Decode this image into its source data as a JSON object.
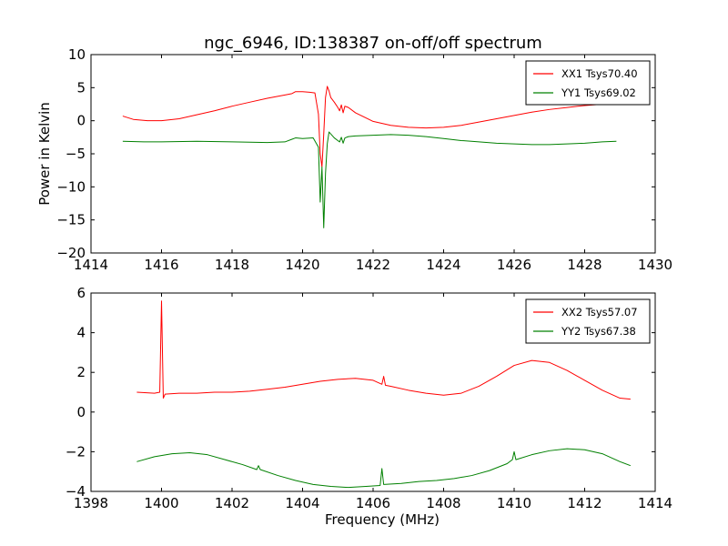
{
  "figure": {
    "title": "ngc_6946, ID:138387 on-off/off spectrum"
  },
  "colors": {
    "xx": "#ff0000",
    "yy": "#008000"
  },
  "chart_data": [
    {
      "type": "line",
      "title": "ngc_6946, ID:138387 on-off/off spectrum",
      "xlabel": "",
      "ylabel": "Power in Kelvin",
      "xlim": [
        1414,
        1430
      ],
      "ylim": [
        -20,
        10
      ],
      "xticks": [
        1414,
        1416,
        1418,
        1420,
        1422,
        1424,
        1426,
        1428,
        1430
      ],
      "yticks": [
        -20,
        -15,
        -10,
        -5,
        0,
        5,
        10
      ],
      "legend_position": "top-right",
      "series": [
        {
          "name": "XX1 Tsys70.40",
          "color": "#ff0000",
          "x": [
            1414.9,
            1415.2,
            1415.6,
            1416.0,
            1416.5,
            1417.0,
            1417.5,
            1418.0,
            1418.5,
            1419.0,
            1419.5,
            1419.7,
            1419.8,
            1420.0,
            1420.2,
            1420.35,
            1420.45,
            1420.5,
            1420.55,
            1420.6,
            1420.65,
            1420.7,
            1420.75,
            1420.8,
            1420.9,
            1421.0,
            1421.05,
            1421.1,
            1421.15,
            1421.2,
            1421.3,
            1421.5,
            1422.0,
            1422.5,
            1423.0,
            1423.5,
            1424.0,
            1424.5,
            1425.0,
            1425.5,
            1426.0,
            1426.5,
            1427.0,
            1427.5,
            1428.0,
            1428.5,
            1428.9
          ],
          "y": [
            0.7,
            0.2,
            0.0,
            0.0,
            0.3,
            0.9,
            1.5,
            2.2,
            2.8,
            3.4,
            3.9,
            4.1,
            4.4,
            4.4,
            4.3,
            4.2,
            1.0,
            -5.0,
            -7.0,
            -2.0,
            3.5,
            5.2,
            4.5,
            3.5,
            2.8,
            2.0,
            1.5,
            2.4,
            1.2,
            2.2,
            2.0,
            1.2,
            -0.1,
            -0.7,
            -1.0,
            -1.1,
            -1.0,
            -0.7,
            -0.2,
            0.3,
            0.8,
            1.3,
            1.7,
            2.0,
            2.3,
            2.5,
            2.6
          ]
        },
        {
          "name": "YY1 Tsys69.02",
          "color": "#008000",
          "x": [
            1414.9,
            1415.5,
            1416.0,
            1417.0,
            1418.0,
            1419.0,
            1419.5,
            1419.7,
            1419.8,
            1420.0,
            1420.3,
            1420.45,
            1420.5,
            1420.55,
            1420.6,
            1420.65,
            1420.7,
            1420.75,
            1420.8,
            1420.9,
            1421.0,
            1421.05,
            1421.1,
            1421.15,
            1421.2,
            1421.3,
            1421.5,
            1422.0,
            1422.5,
            1423.0,
            1423.5,
            1424.0,
            1424.5,
            1425.0,
            1425.5,
            1426.0,
            1426.5,
            1427.0,
            1427.5,
            1428.0,
            1428.5,
            1428.9
          ],
          "y": [
            -3.1,
            -3.2,
            -3.2,
            -3.1,
            -3.2,
            -3.3,
            -3.2,
            -2.8,
            -2.6,
            -2.7,
            -2.6,
            -4.0,
            -12.3,
            -7.0,
            -16.2,
            -8.0,
            -3.5,
            -1.7,
            -2.0,
            -2.6,
            -3.0,
            -3.2,
            -2.5,
            -3.4,
            -2.6,
            -2.4,
            -2.3,
            -2.2,
            -2.1,
            -2.2,
            -2.4,
            -2.7,
            -3.0,
            -3.2,
            -3.4,
            -3.5,
            -3.6,
            -3.6,
            -3.5,
            -3.4,
            -3.2,
            -3.1
          ]
        }
      ]
    },
    {
      "type": "line",
      "title": "",
      "xlabel": "Frequency (MHz)",
      "ylabel": "",
      "xlim": [
        1398,
        1414
      ],
      "ylim": [
        -4,
        6
      ],
      "xticks": [
        1398,
        1400,
        1402,
        1404,
        1406,
        1408,
        1410,
        1412,
        1414
      ],
      "yticks": [
        -4,
        -2,
        0,
        2,
        4,
        6
      ],
      "legend_position": "top-right",
      "series": [
        {
          "name": "XX2 Tsys57.07",
          "color": "#ff0000",
          "x": [
            1399.3,
            1399.8,
            1399.95,
            1400.0,
            1400.05,
            1400.1,
            1400.5,
            1401.0,
            1401.5,
            1402.0,
            1402.5,
            1403.0,
            1403.5,
            1404.0,
            1404.5,
            1405.0,
            1405.5,
            1406.0,
            1406.25,
            1406.3,
            1406.35,
            1406.5,
            1407.0,
            1407.5,
            1408.0,
            1408.5,
            1409.0,
            1409.5,
            1410.0,
            1410.5,
            1411.0,
            1411.5,
            1412.0,
            1412.5,
            1413.0,
            1413.3
          ],
          "y": [
            1.0,
            0.95,
            1.0,
            5.6,
            0.7,
            0.9,
            0.95,
            0.95,
            1.0,
            1.0,
            1.05,
            1.15,
            1.25,
            1.4,
            1.55,
            1.65,
            1.7,
            1.6,
            1.4,
            1.8,
            1.35,
            1.3,
            1.1,
            0.95,
            0.85,
            0.95,
            1.3,
            1.8,
            2.35,
            2.6,
            2.5,
            2.1,
            1.6,
            1.1,
            0.7,
            0.65
          ]
        },
        {
          "name": "YY2 Tsys67.38",
          "color": "#008000",
          "x": [
            1399.3,
            1399.8,
            1400.3,
            1400.8,
            1401.3,
            1401.8,
            1402.3,
            1402.7,
            1402.75,
            1402.8,
            1403.3,
            1403.8,
            1404.3,
            1404.8,
            1405.3,
            1405.8,
            1406.2,
            1406.25,
            1406.3,
            1406.8,
            1407.3,
            1407.8,
            1408.3,
            1408.8,
            1409.3,
            1409.8,
            1409.95,
            1410.0,
            1410.05,
            1410.5,
            1411.0,
            1411.5,
            1412.0,
            1412.5,
            1413.0,
            1413.3
          ],
          "y": [
            -2.5,
            -2.25,
            -2.1,
            -2.05,
            -2.15,
            -2.4,
            -2.65,
            -2.9,
            -2.7,
            -2.9,
            -3.2,
            -3.45,
            -3.65,
            -3.75,
            -3.8,
            -3.75,
            -3.7,
            -2.85,
            -3.65,
            -3.6,
            -3.5,
            -3.45,
            -3.35,
            -3.2,
            -2.95,
            -2.6,
            -2.4,
            -2.0,
            -2.4,
            -2.15,
            -1.95,
            -1.85,
            -1.9,
            -2.1,
            -2.5,
            -2.7
          ]
        }
      ]
    }
  ]
}
